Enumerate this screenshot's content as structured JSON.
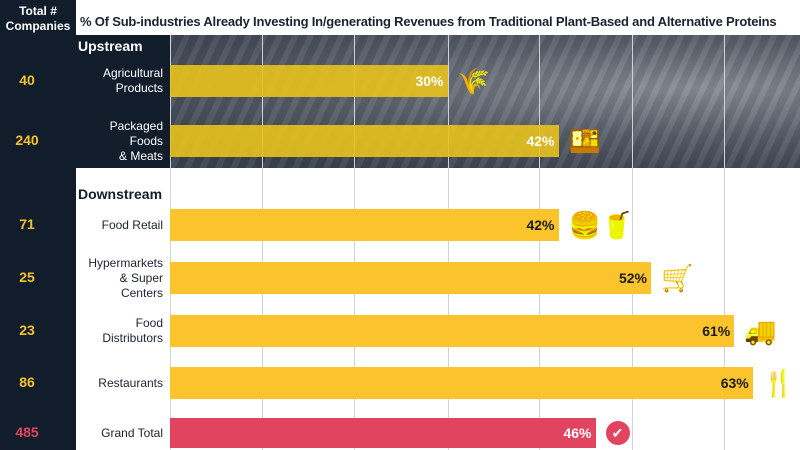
{
  "header": {
    "left_title": "Total # Companies",
    "title": "% Of Sub-industries Already Investing In/generating Revenues from Traditional Plant-Based and Alternative Proteins"
  },
  "colors": {
    "bar": "#fcc42c",
    "upstream_bar": "#e8c21e",
    "total_bar": "#e2445f",
    "left_column": "#121d2c",
    "count": "#f5c22a"
  },
  "chart_data": {
    "type": "bar",
    "orientation": "horizontal",
    "xlim": [
      0,
      63
    ],
    "grid": true,
    "title": "% Of Sub-industries Already Investing In/generating Revenues from Traditional Plant-Based and Alternative Proteins",
    "sections": [
      {
        "name": "Upstream",
        "rows": [
          {
            "label": "Agricultural Products",
            "count": 40,
            "value": 30,
            "display": "30%",
            "icon": "wheat-icon"
          },
          {
            "label": "Packaged Foods & Meats",
            "count": 240,
            "value": 42,
            "display": "42%",
            "icon": "food-container-icon"
          }
        ]
      },
      {
        "name": "Downstream",
        "rows": [
          {
            "label": "Food Retail",
            "count": 71,
            "value": 42,
            "display": "42%",
            "icon": "burger-drink-icon"
          },
          {
            "label": "Hypermarkets & Super Centers",
            "count": 25,
            "value": 52,
            "display": "52%",
            "icon": "shopping-cart-icon"
          },
          {
            "label": "Food Distributors",
            "count": 23,
            "value": 61,
            "display": "61%",
            "icon": "truck-icon"
          },
          {
            "label": "Restaurants",
            "count": 86,
            "value": 63,
            "display": "63%",
            "icon": "restaurant-icon"
          }
        ]
      },
      {
        "name": "",
        "rows": [
          {
            "label": "Grand Total",
            "count": 485,
            "value": 46,
            "display": "46%",
            "icon": "check-badge-icon"
          }
        ]
      }
    ]
  }
}
